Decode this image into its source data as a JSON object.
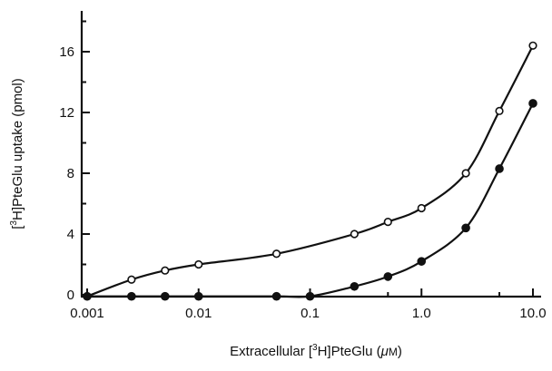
{
  "chart_data": {
    "type": "line",
    "title": "",
    "xlabel": {
      "prefix": "Extracellular [",
      "sup": "3",
      "middle": "H]PteGlu (",
      "mu": "μ",
      "unit_rest": "M",
      "suffix": ")"
    },
    "ylabel": {
      "prefix": "[",
      "sup": "3",
      "rest": "H]PteGlu uptake (pmol)"
    },
    "x_scale": "log",
    "xlim": [
      0.001,
      10.0
    ],
    "ylim": [
      0,
      17.5
    ],
    "x_ticks": [
      {
        "value": 0.001,
        "label": "0.001"
      },
      {
        "value": 0.01,
        "label": "0.01"
      },
      {
        "value": 0.1,
        "label": "0.1"
      },
      {
        "value": 1.0,
        "label": "1.0"
      },
      {
        "value": 10.0,
        "label": "10.0"
      }
    ],
    "y_ticks": [
      {
        "value": 0,
        "label": "0"
      },
      {
        "value": 4,
        "label": "4"
      },
      {
        "value": 8,
        "label": "8"
      },
      {
        "value": 12,
        "label": "12"
      },
      {
        "value": 16,
        "label": "16"
      }
    ],
    "grid": false,
    "series": [
      {
        "marker": "open-circle",
        "x": [
          0.001,
          0.0025,
          0.005,
          0.01,
          0.05,
          0.25,
          0.5,
          1.0,
          2.5,
          5.0,
          10.0
        ],
        "y": [
          -0.1,
          1.0,
          1.6,
          2.0,
          2.7,
          4.0,
          4.8,
          5.7,
          8.0,
          12.1,
          16.4
        ]
      },
      {
        "marker": "filled-circle",
        "x": [
          0.001,
          0.0025,
          0.005,
          0.01,
          0.05,
          0.1,
          0.25,
          0.5,
          1.0,
          2.5,
          5.0,
          10.0
        ],
        "y": [
          -0.1,
          -0.1,
          -0.1,
          -0.1,
          -0.1,
          -0.1,
          0.55,
          1.2,
          2.2,
          4.4,
          8.3,
          12.6
        ]
      }
    ]
  }
}
